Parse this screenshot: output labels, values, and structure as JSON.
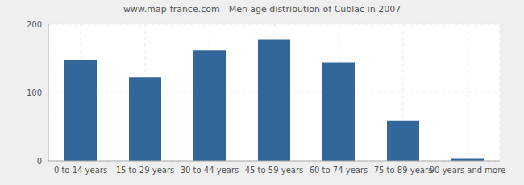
{
  "chart_data": {
    "type": "bar",
    "title": "www.map-france.com - Men age distribution of Cublac in 2007",
    "categories": [
      "0 to 14 years",
      "15 to 29 years",
      "30 to 44 years",
      "45 to 59 years",
      "60 to 74 years",
      "75 to 89 years",
      "90 years and more"
    ],
    "values": [
      148,
      122,
      162,
      177,
      144,
      59,
      3
    ],
    "color": "#336699",
    "ylim": [
      0,
      200
    ],
    "yticks": [
      0,
      100,
      200
    ],
    "grid": true
  }
}
